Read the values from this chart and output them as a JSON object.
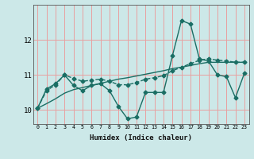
{
  "xlabel": "Humidex (Indice chaleur)",
  "bg_color": "#cce8e8",
  "grid_color": "#e8a0a0",
  "line_color": "#1a6e64",
  "x": [
    0,
    1,
    2,
    3,
    4,
    5,
    6,
    7,
    8,
    9,
    10,
    11,
    12,
    13,
    14,
    15,
    16,
    17,
    18,
    19,
    20,
    21,
    22,
    23
  ],
  "y_main": [
    10.05,
    10.6,
    10.75,
    11.0,
    10.7,
    10.55,
    10.7,
    10.75,
    10.55,
    10.1,
    9.75,
    9.8,
    10.5,
    10.5,
    10.5,
    11.55,
    12.55,
    12.45,
    11.45,
    11.4,
    11.0,
    10.95,
    10.35,
    11.05
  ],
  "y_smooth": [
    10.05,
    10.55,
    10.72,
    11.0,
    10.9,
    10.82,
    10.85,
    10.88,
    10.82,
    10.72,
    10.72,
    10.78,
    10.88,
    10.92,
    10.98,
    11.12,
    11.22,
    11.32,
    11.42,
    11.46,
    11.42,
    11.4,
    11.36,
    11.36
  ],
  "y_trend": [
    10.05,
    10.18,
    10.32,
    10.48,
    10.58,
    10.64,
    10.7,
    10.76,
    10.82,
    10.88,
    10.92,
    10.97,
    11.02,
    11.07,
    11.12,
    11.18,
    11.22,
    11.27,
    11.32,
    11.36,
    11.36,
    11.36,
    11.36,
    11.36
  ],
  "ylim": [
    9.6,
    13.0
  ],
  "yticks": [
    10,
    11,
    12
  ],
  "xlim": [
    -0.5,
    23.5
  ],
  "marker_size": 2.5,
  "linewidth": 1.0
}
